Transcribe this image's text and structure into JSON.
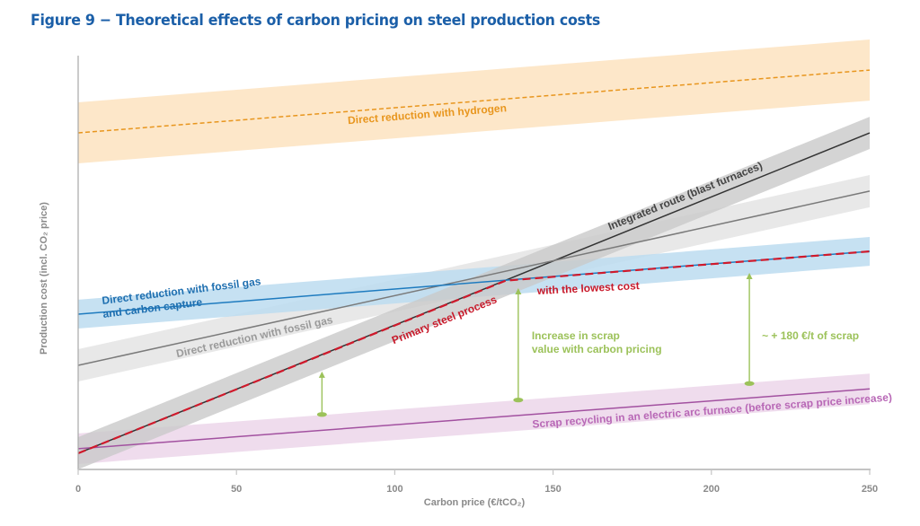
{
  "figure": {
    "title": "Figure 9 − Theoretical effects of carbon pricing on steel production costs"
  },
  "chart_data": {
    "type": "line",
    "title": "Figure 9 − Theoretical effects of carbon pricing on steel production costs",
    "xlabel": "Carbon price (€/tCO₂)",
    "ylabel": "Production cost (incl. CO₂ price)",
    "xlim": [
      0,
      250
    ],
    "ylim": [
      0,
      100
    ],
    "y_units": "relative index (no y-axis ticks shown)",
    "x_ticks": [
      0,
      50,
      100,
      150,
      200,
      250
    ],
    "x_tick_labels": [
      "0",
      "50",
      "100",
      "150",
      "200",
      "250"
    ],
    "grid": false,
    "legend": "none (inline labels)",
    "series": [
      {
        "id": "hydrogen",
        "name": "Direct reduction with hydrogen",
        "x": [
          0,
          250
        ],
        "y": [
          81.3,
          96.5
        ],
        "band": 7.4,
        "line_color": "#e8961e",
        "band_color": "#fde3c0",
        "dashed": true,
        "label_at": 110
      },
      {
        "id": "integrated",
        "name": "Integrated route (blast furnaces)",
        "x": [
          0,
          250
        ],
        "y": [
          3.7,
          81.3
        ],
        "band": 3.9,
        "line_color": "#333333",
        "band_color": "#c9c9c9",
        "dashed": false,
        "label_at": 193
      },
      {
        "id": "fossil_gas",
        "name": "Direct reduction with fossil gas",
        "x": [
          0,
          250
        ],
        "y": [
          25.0,
          67.2
        ],
        "band": 3.9,
        "line_color": "#7a7a7a",
        "band_color": "#e4e4e4",
        "dashed": false,
        "label_at": 55
      },
      {
        "id": "carbon_capture",
        "name": "Direct reduction with fossil gas",
        "name_line2": "and carbon capture",
        "x": [
          0,
          250
        ],
        "y": [
          37.4,
          52.6
        ],
        "band": 3.5,
        "line_color": "#1e7bbf",
        "band_color": "#bcdcf0",
        "dashed": false,
        "label_at": 42
      },
      {
        "id": "scrap_eaf",
        "name": "Scrap recycling in an electric arc furnace (before scrap price increase)",
        "x": [
          0,
          250
        ],
        "y": [
          4.8,
          19.3
        ],
        "band": 3.7,
        "line_color": "#a251a0",
        "band_color": "#ecd6ea",
        "dashed": false,
        "label_at": 200
      },
      {
        "id": "primary_lowest",
        "name": "Primary steel process",
        "name_line2": "with the lowest cost",
        "x": [
          0,
          135,
          250
        ],
        "y": [
          3.7,
          45.5,
          52.6
        ],
        "line_color": "#d0192b",
        "dashed": true
      }
    ],
    "annotations": [
      {
        "id": "scrap_value_arrow_1",
        "x": 77,
        "y_from": 13.1,
        "y_to": 23.5,
        "color": "#9cc25a"
      },
      {
        "id": "scrap_value_arrow_2",
        "x": 139,
        "y_from": 16.6,
        "y_to": 43.7,
        "color": "#9cc25a",
        "text_line1": "Increase in scrap",
        "text_line2": "value with carbon pricing"
      },
      {
        "id": "scrap_value_arrow_3",
        "x": 212,
        "y_from": 20.6,
        "y_to": 47.4,
        "color": "#9cc25a",
        "text_line1": "~ + 180 €/t of scrap"
      }
    ]
  }
}
